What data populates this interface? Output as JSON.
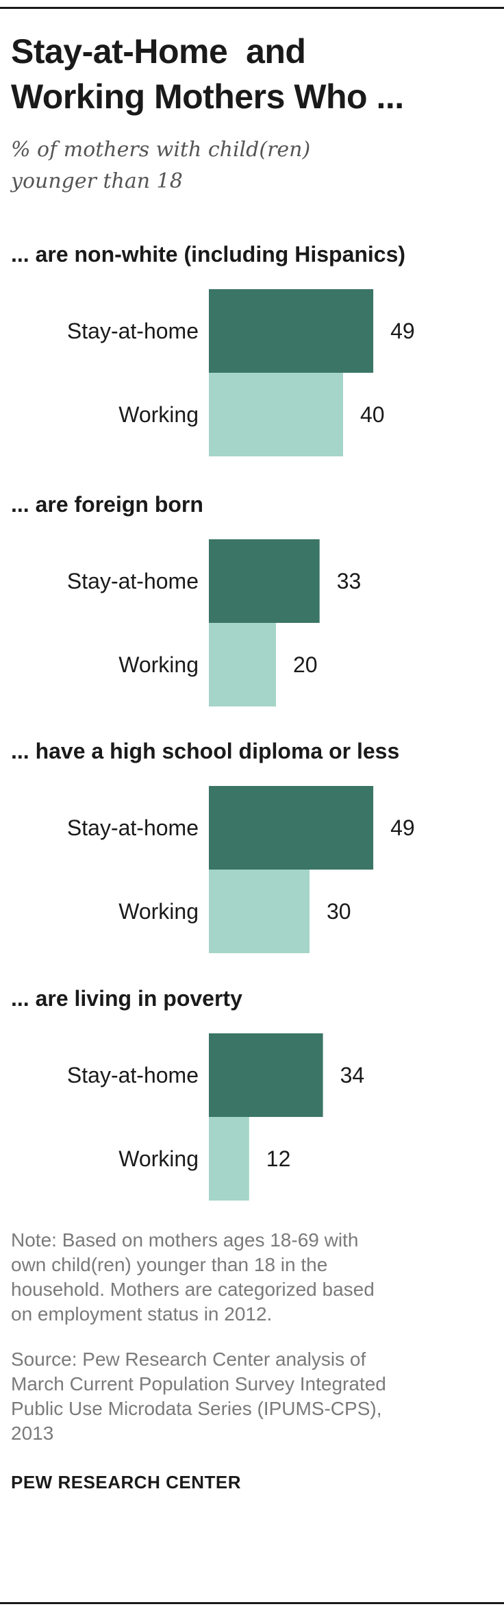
{
  "header": {
    "title_line1": "Stay-at-Home  and",
    "title_line2": "Working Mothers Who ...",
    "subtitle_line1": "% of mothers with child(ren)",
    "subtitle_line2": "younger than 18"
  },
  "chart_data": {
    "type": "bar",
    "orientation": "horizontal",
    "title": "",
    "xlabel": "",
    "ylabel": "",
    "xlim": [
      0,
      50
    ],
    "grid": false,
    "legend": "none",
    "panels": [
      {
        "label": "... are non-white (including Hispanics)",
        "categories": [
          "Stay-at-home",
          "Working"
        ],
        "values": [
          49,
          40
        ]
      },
      {
        "label": "... are foreign  born",
        "categories": [
          "Stay-at-home",
          "Working"
        ],
        "values": [
          33,
          20
        ]
      },
      {
        "label": "... have a high school diploma  or less",
        "categories": [
          "Stay-at-home",
          "Working"
        ],
        "values": [
          49,
          30
        ]
      },
      {
        "label": "... are living  in poverty",
        "categories": [
          "Stay-at-home",
          "Working"
        ],
        "values": [
          34,
          12
        ]
      }
    ],
    "colors": {
      "stay_at_home": "#3b7565",
      "working": "#a5d5c8"
    }
  },
  "footer": {
    "note_line1": "Note: Based on mothers ages 18-69 with",
    "note_line2": "own child(ren) younger than 18 in the",
    "note_line3": "household. Mothers are categorized based",
    "note_line4": "on employment status in 2012.",
    "source_line1": "Source: Pew Research Center analysis of",
    "source_line2": "March Current Population Survey Integrated",
    "source_line3": "Public Use Microdata Series (IPUMS-CPS),",
    "source_line4": "2013",
    "brand": "PEW RESEARCH CENTER"
  }
}
